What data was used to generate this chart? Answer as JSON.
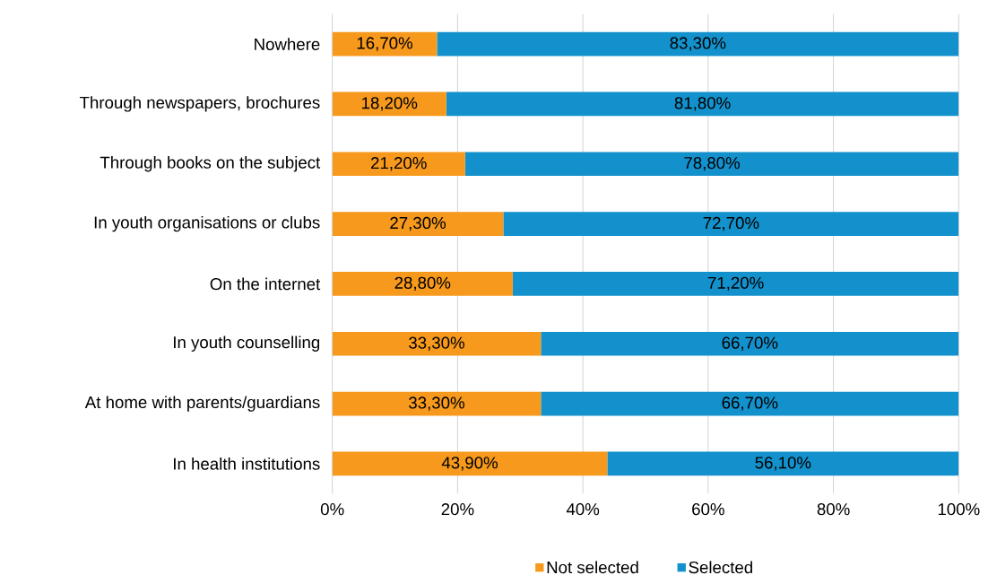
{
  "chart_data": {
    "type": "bar",
    "orientation": "horizontal",
    "stacked": true,
    "categories": [
      "Nowhere",
      "Through newspapers, brochures",
      "Through books on the subject",
      "In youth organisations or clubs",
      "On the internet",
      "In youth counselling",
      "At home with parents/guardians",
      "In health institutions"
    ],
    "series": [
      {
        "name": "Not selected",
        "color": "#f7991c",
        "values": [
          16.7,
          18.2,
          21.2,
          27.3,
          28.8,
          33.3,
          33.3,
          43.9
        ],
        "value_labels": [
          "16,70%",
          "18,20%",
          "21,20%",
          "27,30%",
          "28,80%",
          "33,30%",
          "33,30%",
          "43,90%"
        ]
      },
      {
        "name": "Selected",
        "color": "#1391cc",
        "values": [
          83.3,
          81.8,
          78.8,
          72.7,
          71.2,
          66.7,
          66.7,
          56.1
        ],
        "value_labels": [
          "83,30%",
          "81,80%",
          "78,80%",
          "72,70%",
          "71,20%",
          "66,70%",
          "66,70%",
          "56,10%"
        ]
      }
    ],
    "xlim": [
      0,
      100
    ],
    "xticks": [
      {
        "value": 0,
        "label": "0%"
      },
      {
        "value": 20,
        "label": "20%"
      },
      {
        "value": 40,
        "label": "40%"
      },
      {
        "value": 60,
        "label": "60%"
      },
      {
        "value": 80,
        "label": "80%"
      },
      {
        "value": 100,
        "label": "100%"
      }
    ],
    "grid": "x",
    "legend": "bottom"
  }
}
